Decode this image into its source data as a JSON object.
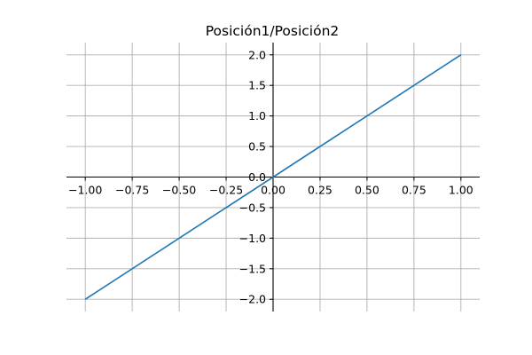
{
  "chart_data": {
    "type": "line",
    "title": "Posición1/Posición2",
    "xlabel": "",
    "ylabel": "",
    "xlim": [
      -1.1,
      1.1
    ],
    "ylim": [
      -2.2,
      2.2
    ],
    "grid": true,
    "spines": "centered",
    "x_ticks": [
      -1.0,
      -0.75,
      -0.5,
      -0.25,
      0.0,
      0.25,
      0.5,
      0.75,
      1.0
    ],
    "x_tick_labels": [
      "−1.00",
      "−0.75",
      "−0.50",
      "−0.25",
      "0.00",
      "0.25",
      "0.50",
      "0.75",
      "1.00"
    ],
    "y_ticks": [
      2.0,
      1.5,
      1.0,
      0.5,
      0.0,
      -0.5,
      -1.0,
      -1.5,
      -2.0
    ],
    "y_tick_labels": [
      "2.0",
      "1.5",
      "1.0",
      "0.5",
      "0.0",
      "−0.5",
      "−1.0",
      "−1.5",
      "−2.0"
    ],
    "series": [
      {
        "color": "#1f77b4",
        "x": [
          -1.0,
          1.0
        ],
        "y": [
          -2.0,
          2.0
        ]
      }
    ]
  }
}
